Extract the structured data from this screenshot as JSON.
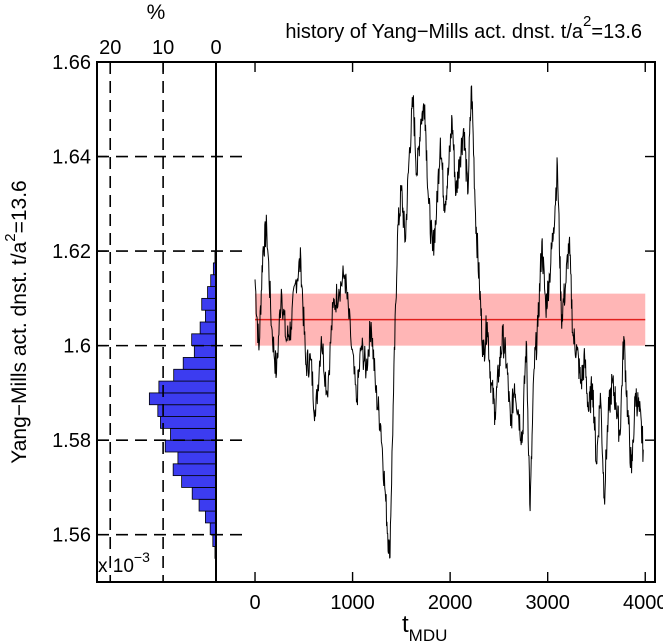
{
  "chart_data": {
    "type": "line",
    "title_main": "history of Yang−Mills act. dnst. t/a",
    "title_exponent": "2",
    "title_tail": "=13.6",
    "xlabel_main": "t",
    "xlabel_sub": "MDU",
    "ylabel_main": "Yang−Mills act. dnst. t/a",
    "ylabel_exponent": "2",
    "ylabel_tail": "=13.6",
    "y_scale_note": "x 10",
    "y_scale_exponent": "−3",
    "xlim": [
      -400,
      4100
    ],
    "ylim": [
      1.55,
      1.66
    ],
    "x_ticks": [
      0,
      1000,
      2000,
      3000,
      4000
    ],
    "x_tick_labels": [
      "0",
      "1000",
      "2000",
      "3000",
      "4000"
    ],
    "y_ticks": [
      1.56,
      1.58,
      1.6,
      1.62,
      1.64,
      1.66
    ],
    "y_tick_labels": [
      "1.56",
      "1.58",
      "1.6",
      "1.62",
      "1.64",
      "1.66"
    ],
    "pct_axis_label": "%",
    "pct_ticks": [
      20,
      10,
      0
    ],
    "pct_tick_labels": [
      "20",
      "10",
      "0"
    ],
    "mean": 1.6055,
    "band_low": 1.6,
    "band_high": 1.611,
    "band_x": [
      0,
      4000
    ],
    "mean_color": "#e0201c",
    "band_color": "#ffb6b6",
    "hist_color": "#3c3cf0",
    "line_color": "#000000",
    "histogram": {
      "bin_low": 1.555,
      "bin_width": 0.0025,
      "percent": [
        0.2,
        0.6,
        1.1,
        2.0,
        3.2,
        4.5,
        6.5,
        8.1,
        7.2,
        9.6,
        8.6,
        10.5,
        11.0,
        12.6,
        10.8,
        8.0,
        6.2,
        4.1,
        4.6,
        3.0,
        2.0,
        2.7,
        1.6,
        1.0,
        0.5,
        0.2
      ]
    },
    "series": [
      {
        "name": "history",
        "x": [
          0,
          40,
          80,
          120,
          170,
          220,
          270,
          320,
          370,
          420,
          470,
          520,
          570,
          620,
          680,
          740,
          800,
          860,
          920,
          980,
          1040,
          1090,
          1140,
          1190,
          1240,
          1290,
          1340,
          1380,
          1420,
          1460,
          1500,
          1540,
          1580,
          1620,
          1660,
          1700,
          1740,
          1780,
          1820,
          1860,
          1900,
          1940,
          1980,
          2020,
          2060,
          2100,
          2140,
          2180,
          2220,
          2260,
          2300,
          2340,
          2380,
          2420,
          2460,
          2500,
          2540,
          2580,
          2620,
          2660,
          2700,
          2740,
          2780,
          2820,
          2860,
          2900,
          2940,
          2980,
          3020,
          3060,
          3100,
          3140,
          3180,
          3220,
          3260,
          3300,
          3340,
          3380,
          3420,
          3460,
          3500,
          3540,
          3580,
          3620,
          3660,
          3700,
          3740,
          3780,
          3820,
          3860,
          3900,
          3940,
          3980
        ],
        "y": [
          1.614,
          1.599,
          1.62,
          1.625,
          1.604,
          1.594,
          1.612,
          1.601,
          1.604,
          1.614,
          1.618,
          1.596,
          1.597,
          1.585,
          1.602,
          1.59,
          1.608,
          1.612,
          1.615,
          1.602,
          1.588,
          1.6,
          1.595,
          1.605,
          1.59,
          1.583,
          1.567,
          1.555,
          1.59,
          1.623,
          1.633,
          1.622,
          1.64,
          1.652,
          1.636,
          1.648,
          1.651,
          1.63,
          1.62,
          1.628,
          1.644,
          1.63,
          1.636,
          1.648,
          1.632,
          1.64,
          1.646,
          1.632,
          1.655,
          1.628,
          1.613,
          1.598,
          1.605,
          1.592,
          1.586,
          1.595,
          1.602,
          1.596,
          1.583,
          1.592,
          1.586,
          1.58,
          1.601,
          1.565,
          1.595,
          1.604,
          1.622,
          1.608,
          1.615,
          1.625,
          1.638,
          1.606,
          1.612,
          1.622,
          1.602,
          1.599,
          1.592,
          1.597,
          1.586,
          1.592,
          1.575,
          1.59,
          1.568,
          1.585,
          1.592,
          1.588,
          1.581,
          1.602,
          1.586,
          1.573,
          1.59,
          1.586,
          1.578
        ]
      }
    ]
  }
}
